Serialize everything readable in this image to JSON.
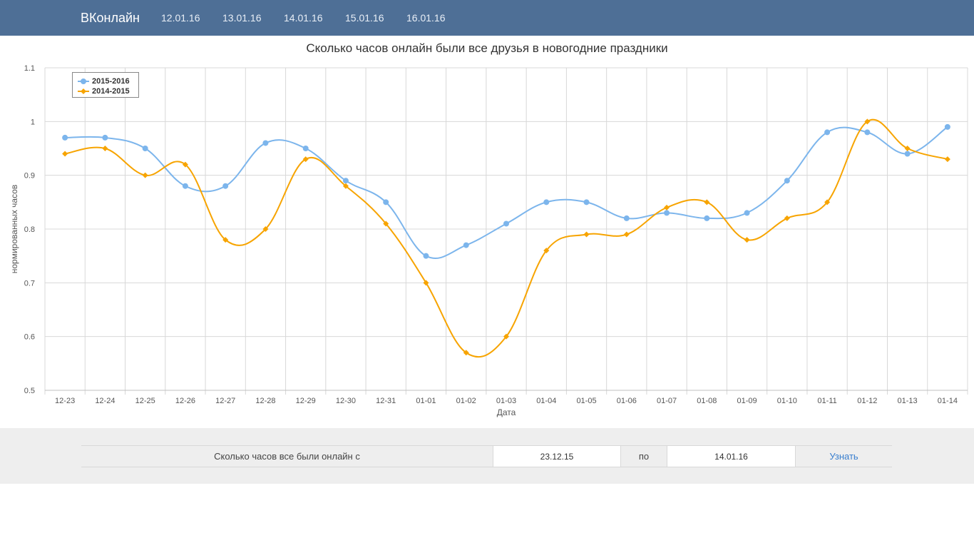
{
  "nav": {
    "brand": "ВКонлайн",
    "links": [
      "12.01.16",
      "13.01.16",
      "14.01.16",
      "15.01.16",
      "16.01.16"
    ]
  },
  "colors": {
    "navbar": "#4e6f96",
    "series_2015_2016": "#7cb5ec",
    "series_2014_2015": "#f7a400"
  },
  "chart_data": {
    "type": "line",
    "title": "Сколько часов онлайн были все друзья в новогодние праздники",
    "xlabel": "Дата",
    "ylabel": "нормированных часов",
    "ylim": [
      0.5,
      1.1
    ],
    "yticks": [
      "0.5",
      "0.6",
      "0.7",
      "0.8",
      "0.9",
      "1",
      "1.1"
    ],
    "grid": true,
    "legend_position": "top-left",
    "categories": [
      "12-23",
      "12-24",
      "12-25",
      "12-26",
      "12-27",
      "12-28",
      "12-29",
      "12-30",
      "12-31",
      "01-01",
      "01-02",
      "01-03",
      "01-04",
      "01-05",
      "01-06",
      "01-07",
      "01-08",
      "01-09",
      "01-10",
      "01-11",
      "01-12",
      "01-13",
      "01-14"
    ],
    "series": [
      {
        "name": "2015-2016",
        "marker": "circle",
        "values": [
          0.97,
          0.97,
          0.95,
          0.88,
          0.88,
          0.96,
          0.95,
          0.89,
          0.85,
          0.75,
          0.77,
          0.81,
          0.85,
          0.85,
          0.82,
          0.83,
          0.82,
          0.83,
          0.89,
          0.98,
          0.98,
          0.94,
          0.99
        ]
      },
      {
        "name": "2014-2015",
        "marker": "diamond",
        "values": [
          0.94,
          0.95,
          0.9,
          0.92,
          0.78,
          0.8,
          0.93,
          0.88,
          0.81,
          0.7,
          0.57,
          0.6,
          0.76,
          0.79,
          0.79,
          0.84,
          0.85,
          0.78,
          0.82,
          0.85,
          1.0,
          0.95,
          0.93
        ]
      }
    ]
  },
  "query": {
    "label": "Сколько часов все были онлайн с",
    "from_value": "23.12.15",
    "separator": "по",
    "to_value": "14.01.16",
    "button": "Узнать"
  }
}
